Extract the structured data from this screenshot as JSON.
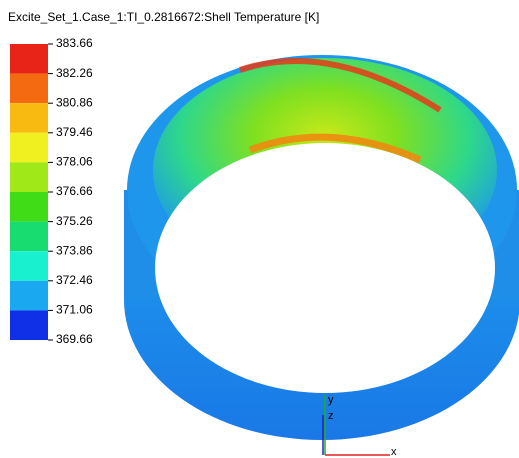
{
  "header": {
    "title": "Excite_Set_1.Case_1:TI_0.2816672:Shell Temperature [K]"
  },
  "legend": {
    "labels": [
      "383.66",
      "382.26",
      "380.86",
      "379.46",
      "378.06",
      "376.66",
      "375.26",
      "373.86",
      "372.46",
      "371.06",
      "369.66"
    ]
  },
  "triad": {
    "labels": [
      "y",
      "z",
      "x"
    ]
  }
}
